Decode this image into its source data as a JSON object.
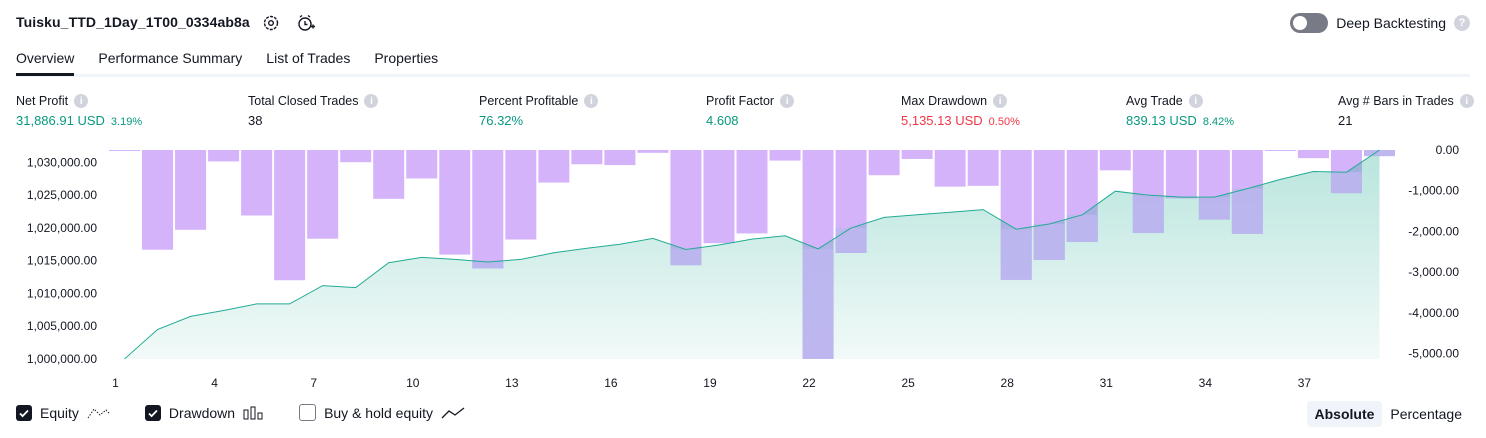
{
  "header": {
    "title": "Tuisku_TTD_1Day_1T00_0334ab8a",
    "deep_backtesting_label": "Deep Backtesting",
    "deep_backtesting_on": false
  },
  "tabs": [
    {
      "label": "Overview",
      "active": true
    },
    {
      "label": "Performance Summary",
      "active": false
    },
    {
      "label": "List of Trades",
      "active": false
    },
    {
      "label": "Properties",
      "active": false
    }
  ],
  "metrics": {
    "net_profit": {
      "label": "Net Profit",
      "value": "31,886.91 USD",
      "pct": "3.19%"
    },
    "total_closed_trades": {
      "label": "Total Closed Trades",
      "value": "38"
    },
    "percent_profitable": {
      "label": "Percent Profitable",
      "value": "76.32%"
    },
    "profit_factor": {
      "label": "Profit Factor",
      "value": "4.608"
    },
    "max_drawdown": {
      "label": "Max Drawdown",
      "value": "5,135.13 USD",
      "pct": "0.50%"
    },
    "avg_trade": {
      "label": "Avg Trade",
      "value": "839.13 USD",
      "pct": "8.42%"
    },
    "avg_bars": {
      "label": "Avg # Bars in Trades",
      "value": "21"
    }
  },
  "colors": {
    "positive": "#089981",
    "negative": "#f23645",
    "equity_line": "#22ab94",
    "drawdown_bar": "#d5b3fb",
    "drawdown_overlap": "#bdb7ee"
  },
  "chart_data": {
    "type": "area",
    "x": [
      1,
      2,
      3,
      4,
      5,
      6,
      7,
      8,
      9,
      10,
      11,
      12,
      13,
      14,
      15,
      16,
      17,
      18,
      19,
      20,
      21,
      22,
      23,
      24,
      25,
      26,
      27,
      28,
      29,
      30,
      31,
      32,
      33,
      34,
      35,
      36,
      37,
      38,
      39
    ],
    "x_ticks": [
      "1",
      "4",
      "7",
      "10",
      "13",
      "16",
      "19",
      "22",
      "25",
      "28",
      "31",
      "34",
      "37"
    ],
    "series": [
      {
        "name": "Equity",
        "axis": "left",
        "type": "line",
        "values": [
          1000000,
          1004500,
          1006500,
          1007400,
          1008400,
          1008400,
          1011200,
          1010900,
          1014700,
          1015500,
          1015200,
          1014800,
          1015200,
          1016200,
          1016900,
          1017500,
          1018400,
          1016700,
          1017400,
          1018300,
          1018800,
          1016800,
          1020000,
          1021600,
          1022000,
          1022400,
          1022800,
          1019800,
          1020600,
          1022000,
          1025600,
          1025000,
          1024700,
          1024700,
          1026000,
          1027400,
          1028600,
          1028500,
          1031886.91
        ]
      },
      {
        "name": "Drawdown",
        "axis": "right",
        "type": "bar",
        "values": [
          0,
          -2450,
          -1960,
          -280,
          -1610,
          -3200,
          -2180,
          -300,
          -1200,
          -700,
          -2570,
          -2910,
          -2200,
          -800,
          -350,
          -370,
          -70,
          -2830,
          -2290,
          -2050,
          -260,
          -5135.13,
          -2530,
          -620,
          -220,
          -900,
          -880,
          -3190,
          -2700,
          -2260,
          -500,
          -2040,
          -1190,
          -1710,
          -2060,
          0,
          -200,
          -1060,
          -150
        ]
      }
    ],
    "left_axis": {
      "ticks": [
        "1,030,000.00",
        "1,025,000.00",
        "1,020,000.00",
        "1,015,000.00",
        "1,010,000.00",
        "1,005,000.00",
        "1,000,000.00"
      ],
      "ylim": [
        1000000,
        1031886.91
      ]
    },
    "right_axis": {
      "ticks": [
        "0.00",
        "-1,000.00",
        "-2,000.00",
        "-3,000.00",
        "-4,000.00",
        "-5,000.00"
      ],
      "ylim": [
        -5135.13,
        0
      ]
    }
  },
  "legend": {
    "equity": {
      "label": "Equity",
      "checked": true
    },
    "drawdown": {
      "label": "Drawdown",
      "checked": true
    },
    "buy_hold": {
      "label": "Buy & hold equity",
      "checked": false
    }
  },
  "scale_mode": {
    "absolute_label": "Absolute",
    "percentage_label": "Percentage",
    "selected": "Absolute"
  }
}
